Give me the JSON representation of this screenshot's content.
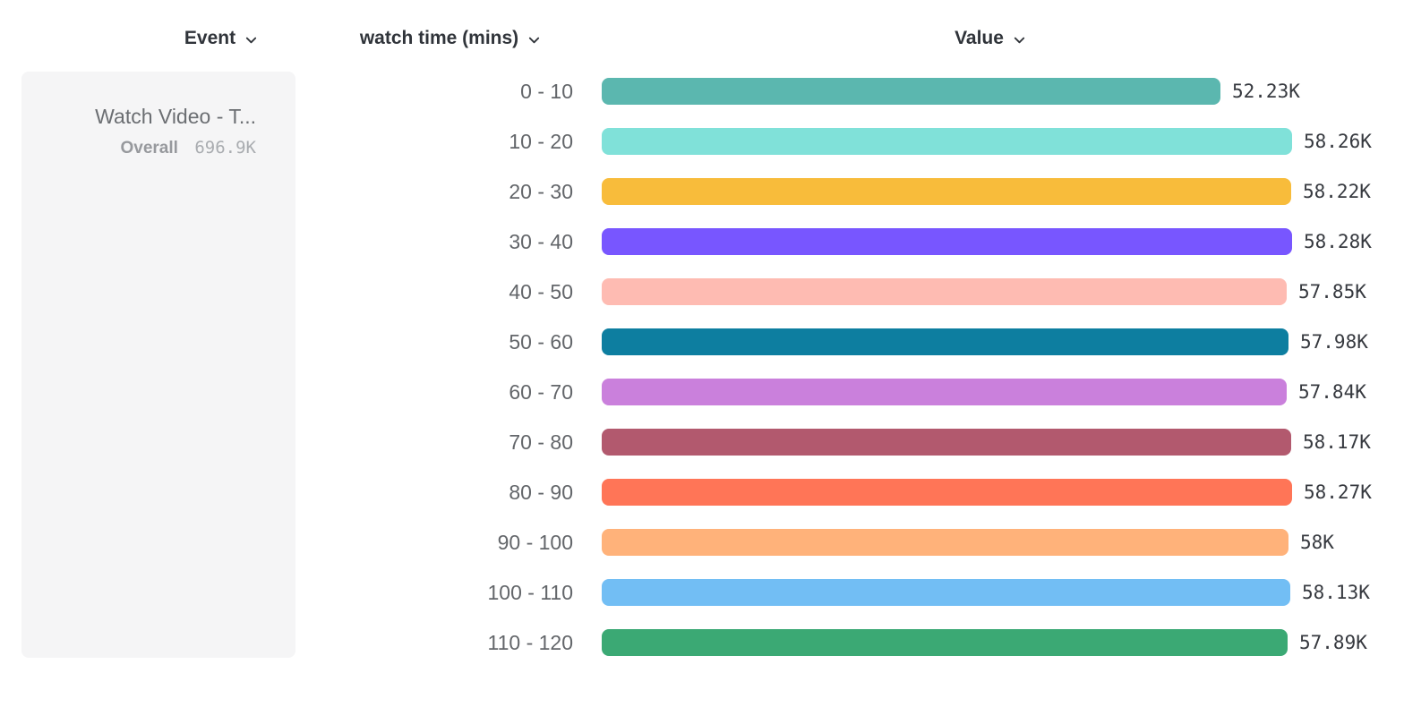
{
  "header": {
    "columns": [
      {
        "id": "event",
        "label": "Event"
      },
      {
        "id": "breakdown",
        "label": "watch time (mins)"
      },
      {
        "id": "value",
        "label": "Value"
      }
    ]
  },
  "event_card": {
    "title": "Watch Video - T...",
    "overall_label": "Overall",
    "overall_value": "696.9K"
  },
  "chart_data": {
    "type": "bar",
    "orientation": "horizontal",
    "title": "",
    "xlabel": "Value",
    "ylabel": "watch time (mins)",
    "series_name": "Watch Video - T...",
    "series_total": "696.9K",
    "categories": [
      "0 - 10",
      "10 - 20",
      "20 - 30",
      "30 - 40",
      "40 - 50",
      "50 - 60",
      "60 - 70",
      "70 - 80",
      "80 - 90",
      "90 - 100",
      "100 - 110",
      "110 - 120"
    ],
    "values": [
      52230,
      58260,
      58220,
      58280,
      57850,
      57980,
      57840,
      58170,
      58270,
      58000,
      58130,
      57890
    ],
    "value_labels": [
      "52.23K",
      "58.26K",
      "58.22K",
      "58.28K",
      "57.85K",
      "57.98K",
      "57.84K",
      "58.17K",
      "58.27K",
      "58K",
      "58.13K",
      "57.89K"
    ],
    "colors": [
      "#5BB7AF",
      "#80E1D9",
      "#F8BC3B",
      "#7856FF",
      "#FEBBB2",
      "#0D7EA0",
      "#CA80DC",
      "#B2596E",
      "#FF7557",
      "#FFB27A",
      "#72BEF4",
      "#3BA974"
    ],
    "xlim": [
      0,
      58280
    ],
    "grid": false,
    "legend_position": "none"
  }
}
